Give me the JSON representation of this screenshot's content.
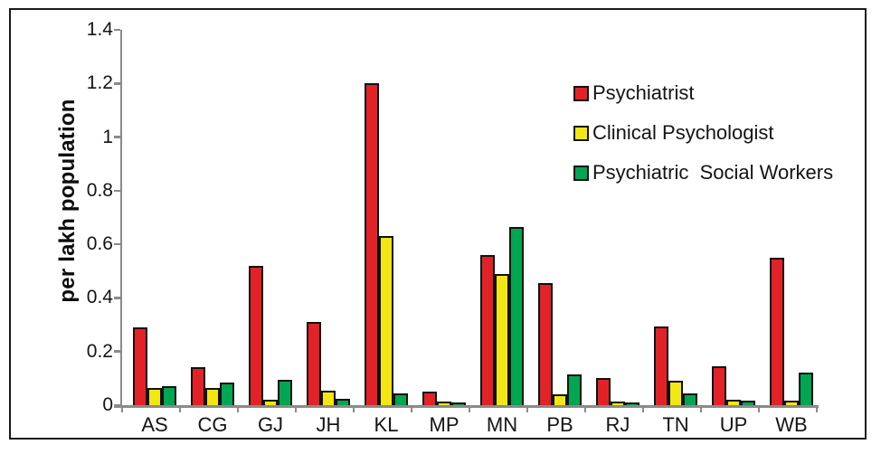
{
  "chart_data": {
    "type": "bar",
    "title": "",
    "xlabel": "",
    "ylabel": "per lakh population",
    "ylim": [
      0,
      1.4
    ],
    "yticks": [
      0,
      0.2,
      0.4,
      0.6,
      0.8,
      1,
      1.2,
      1.4
    ],
    "ytick_labels": [
      "0",
      "0.2",
      "0.4",
      "0.6",
      "0.8",
      "1",
      "1.2",
      "1.4"
    ],
    "grid": false,
    "legend_position": "upper-right-inside",
    "categories": [
      "AS",
      "CG",
      "GJ",
      "JH",
      "KL",
      "MP",
      "MN",
      "PB",
      "RJ",
      "TN",
      "UP",
      "WB"
    ],
    "series": [
      {
        "name": "Psychiatrist",
        "color": "#e32227",
        "values": [
          0.29,
          0.14,
          0.52,
          0.31,
          1.2,
          0.05,
          0.56,
          0.455,
          0.1,
          0.295,
          0.145,
          0.55
        ]
      },
      {
        "name": "Clinical Psychologist",
        "color": "#f2e713",
        "values": [
          0.065,
          0.065,
          0.02,
          0.055,
          0.63,
          0.015,
          0.49,
          0.04,
          0.012,
          0.09,
          0.02,
          0.018
        ]
      },
      {
        "name": "Psychiatric  Social Workers",
        "color": "#00a651",
        "values": [
          0.07,
          0.085,
          0.095,
          0.025,
          0.045,
          0.01,
          0.665,
          0.115,
          0.008,
          0.045,
          0.018,
          0.12
        ]
      }
    ],
    "axis_color": "#8a8a8a",
    "bar_border_color": "#111111"
  }
}
